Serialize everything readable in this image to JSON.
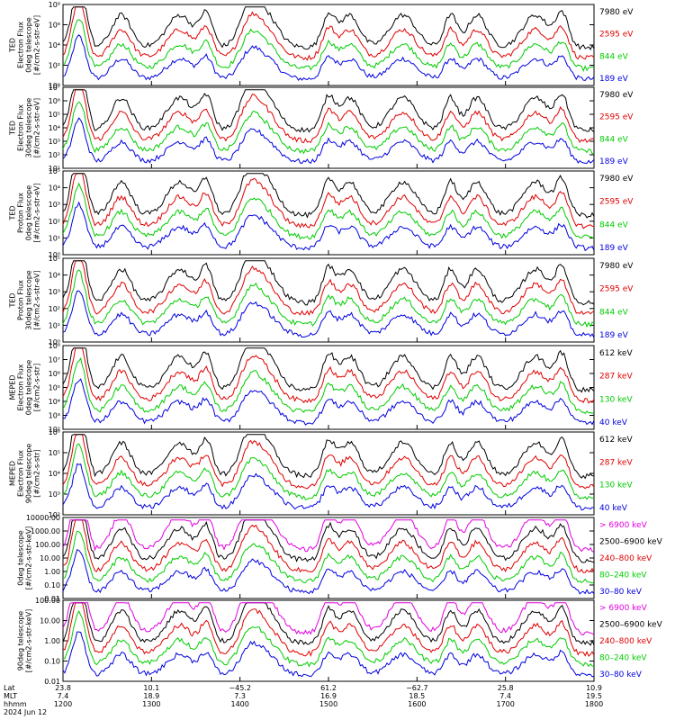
{
  "chart_data": [
    {
      "type": "line",
      "ylabel": [
        "TED",
        "Electron Flux",
        "0deg telescope",
        "[#/cm2-s-str-eV]"
      ],
      "y_ticks": [
        "10⁰",
        "10²",
        "10⁴",
        "10⁶",
        "10⁸"
      ],
      "scale": "log",
      "series": [
        {
          "name": "7980 eV",
          "color": "#000000"
        },
        {
          "name": "2595 eV",
          "color": "#e00000"
        },
        {
          "name": "844 eV",
          "color": "#00cc00"
        },
        {
          "name": "189 eV",
          "color": "#0000e0"
        }
      ]
    },
    {
      "type": "line",
      "ylabel": [
        "TED",
        "Electron Flux",
        "30deg telescope",
        "[#/cm2-s-str-eV]"
      ],
      "y_ticks": [
        "10¹",
        "10²",
        "10³",
        "10⁴",
        "10⁵",
        "10⁶",
        "10⁷"
      ],
      "scale": "log",
      "series": [
        {
          "name": "7980 eV",
          "color": "#000000"
        },
        {
          "name": "2595 eV",
          "color": "#e00000"
        },
        {
          "name": "844 eV",
          "color": "#00cc00"
        },
        {
          "name": "189 eV",
          "color": "#0000e0"
        }
      ]
    },
    {
      "type": "line",
      "ylabel": [
        "TED",
        "Proton Flux",
        "0deg telescope",
        "[#/cm2-s-str-eV]"
      ],
      "y_ticks": [
        "10⁰",
        "10¹",
        "10²",
        "10³",
        "10⁴",
        "10⁵"
      ],
      "scale": "log",
      "series": [
        {
          "name": "7980 eV",
          "color": "#000000"
        },
        {
          "name": "2595 eV",
          "color": "#e00000"
        },
        {
          "name": "844 eV",
          "color": "#00cc00"
        },
        {
          "name": "189 eV",
          "color": "#0000e0"
        }
      ]
    },
    {
      "type": "line",
      "ylabel": [
        "TED",
        "Proton Flux",
        "30deg telescope",
        "[#/cm2-s-str-eV]"
      ],
      "y_ticks": [
        "10⁰",
        "10¹",
        "10²",
        "10³",
        "10⁴",
        "10⁵"
      ],
      "scale": "log",
      "series": [
        {
          "name": "7980 eV",
          "color": "#000000"
        },
        {
          "name": "2595 eV",
          "color": "#e00000"
        },
        {
          "name": "844 eV",
          "color": "#00cc00"
        },
        {
          "name": "189 eV",
          "color": "#0000e0"
        }
      ]
    },
    {
      "type": "line",
      "ylabel": [
        "MEPED",
        "Electron Flux",
        "0deg telescope",
        "[#/cm2-s-str]"
      ],
      "y_ticks": [
        "10²",
        "10³",
        "10⁴",
        "10⁵",
        "10⁶",
        "10⁷",
        "10⁸"
      ],
      "scale": "log",
      "series": [
        {
          "name": "612 keV",
          "color": "#000000"
        },
        {
          "name": "287 keV",
          "color": "#e00000"
        },
        {
          "name": "130 keV",
          "color": "#00cc00"
        },
        {
          "name": "40 keV",
          "color": "#0000e0"
        }
      ]
    },
    {
      "type": "line",
      "ylabel": [
        "MEPED",
        "Electron Flux",
        "90deg telescope",
        "[#/cm2-s-str]"
      ],
      "y_ticks": [
        "10²",
        "10³",
        "10⁴",
        "10⁵",
        "10⁶"
      ],
      "scale": "log",
      "series": [
        {
          "name": "612 keV",
          "color": "#000000"
        },
        {
          "name": "287 keV",
          "color": "#e00000"
        },
        {
          "name": "130 keV",
          "color": "#00cc00"
        },
        {
          "name": "40 keV",
          "color": "#0000e0"
        }
      ]
    },
    {
      "type": "line",
      "ylabel": [
        "0deg telescope",
        "[#/cm2-s-str-keV]"
      ],
      "y_ticks": [
        "0.01",
        "0.10",
        "1.00",
        "10.00",
        "100.00",
        "1000.00",
        "10000.00"
      ],
      "scale": "log",
      "series": [
        {
          "name": "> 6900 keV",
          "color": "#e000e0"
        },
        {
          "name": "2500–6900 keV",
          "color": "#000000"
        },
        {
          "name": "240–800 keV",
          "color": "#e00000"
        },
        {
          "name": "80–240 keV",
          "color": "#00cc00"
        },
        {
          "name": "30–80 keV",
          "color": "#0000e0"
        }
      ]
    },
    {
      "type": "line",
      "ylabel": [
        "90deg telescope",
        "[#/cm2-s-str-keV]"
      ],
      "y_ticks": [
        "0.01",
        "0.10",
        "1.00",
        "10.00",
        "100.00"
      ],
      "scale": "log",
      "series": [
        {
          "name": "> 6900 keV",
          "color": "#e000e0"
        },
        {
          "name": "2500–6900 keV",
          "color": "#000000"
        },
        {
          "name": "240–800 keV",
          "color": "#e00000"
        },
        {
          "name": "80–240 keV",
          "color": "#00cc00"
        },
        {
          "name": "30–80 keV",
          "color": "#0000e0"
        }
      ]
    }
  ],
  "x_axis": {
    "row_labels": [
      "Lat",
      "MLT",
      "hhmm"
    ],
    "date": "2024 Jun 12",
    "ticks": [
      {
        "lat": "23.8",
        "mlt": "7.4",
        "hhmm": "1200"
      },
      {
        "lat": "10.1",
        "mlt": "18.9",
        "hhmm": "1300"
      },
      {
        "lat": "−45.2",
        "mlt": "7.3",
        "hhmm": "1400"
      },
      {
        "lat": "61.2",
        "mlt": "16.9",
        "hhmm": "1500"
      },
      {
        "lat": "−62.7",
        "mlt": "18.5",
        "hhmm": "1600"
      },
      {
        "lat": "25.8",
        "mlt": "7.4",
        "hhmm": "1700"
      },
      {
        "lat": "10.9",
        "mlt": "19.5",
        "hhmm": "1800"
      }
    ]
  }
}
